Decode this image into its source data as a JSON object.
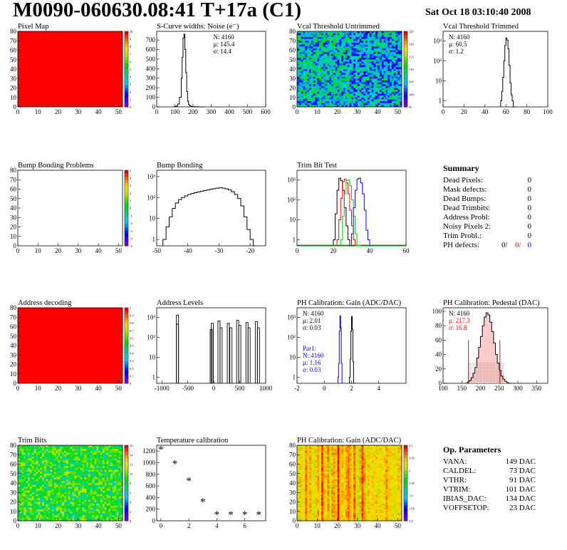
{
  "header": {
    "title": "M0090-060630.08:41 T+17a (C1)",
    "date": "Sat Oct 18 03:10:40 2008"
  },
  "palette": {
    "red": "#ff0000",
    "blue": "#0000ff",
    "green": "#00cc00"
  },
  "chart_data": [
    {
      "id": "pixel-map",
      "type": "heatmap",
      "title": "Pixel Map",
      "xlim": [
        0,
        52
      ],
      "ylim": [
        0,
        80
      ],
      "xticks": [
        0,
        10,
        20,
        30,
        40,
        50
      ],
      "yticks": [
        0,
        10,
        20,
        30,
        40,
        50,
        60,
        70,
        80
      ],
      "fill": "uniform-red",
      "zlim": [
        0,
        10
      ],
      "zticks": [
        "0",
        "1",
        "2",
        "3",
        "4",
        "5",
        "6",
        "7",
        "8",
        "9",
        "10"
      ]
    },
    {
      "id": "scurve",
      "type": "line",
      "title": "S-Curve widths: Noise (e⁻)",
      "log": false,
      "xlim": [
        0,
        600
      ],
      "ylim": [
        0,
        790
      ],
      "xticks": [
        0,
        100,
        200,
        300,
        400,
        500,
        600
      ],
      "yticks": [
        0,
        100,
        200,
        300,
        400,
        500,
        600,
        700
      ],
      "stats": [
        "N: 4160",
        "μ: 145.4",
        "σ: 14.4"
      ],
      "series": [
        {
          "x": [
            95,
            105,
            115,
            125,
            135,
            140,
            145,
            150,
            155,
            160,
            165,
            170,
            175,
            180,
            190,
            200,
            215,
            230,
            250
          ],
          "y": [
            2,
            8,
            30,
            100,
            300,
            520,
            720,
            760,
            600,
            360,
            160,
            60,
            25,
            10,
            4,
            2,
            1,
            0,
            0
          ]
        }
      ]
    },
    {
      "id": "vcal-untrimmed",
      "type": "heatmap",
      "title": "Vcal Threshold Untrimmed",
      "xlim": [
        0,
        52
      ],
      "ylim": [
        0,
        80
      ],
      "xticks": [
        0,
        10,
        20,
        30,
        40,
        50
      ],
      "yticks": [
        0,
        10,
        20,
        30,
        40,
        50,
        60,
        70,
        80
      ],
      "fill": "noise-mid-cyan",
      "zticks": [
        "95",
        "100",
        "105",
        "110",
        "115",
        "120",
        "125"
      ]
    },
    {
      "id": "vcal-trimmed",
      "type": "line",
      "title": "Vcal Threshold Trimmed",
      "log": true,
      "xlim": [
        0,
        100
      ],
      "ylim": [
        0.5,
        3000
      ],
      "xticks": [
        0,
        20,
        40,
        60,
        80,
        100
      ],
      "yticks": [
        1,
        10,
        100,
        1000
      ],
      "stats": [
        "N: 4160",
        "μ: 60.5",
        "σ:  1.2"
      ],
      "series": [
        {
          "x": [
            55,
            56,
            57,
            58,
            59,
            60,
            61,
            62,
            63,
            64,
            65,
            66,
            67
          ],
          "y": [
            1,
            3,
            15,
            100,
            600,
            1400,
            1100,
            400,
            60,
            8,
            2,
            1,
            0.5
          ]
        }
      ]
    },
    {
      "id": "bump-bonding-problems",
      "type": "heatmap",
      "title": "Bump Bonding Problems",
      "xlim": [
        0,
        52
      ],
      "ylim": [
        0,
        80
      ],
      "xticks": [
        0,
        10,
        20,
        30,
        40,
        50
      ],
      "yticks": [
        0,
        10,
        20,
        30,
        40,
        50,
        60,
        70,
        80
      ],
      "fill": "empty",
      "zticks": [
        "-5",
        "-4",
        "-3",
        "-2",
        "-1",
        "0",
        "1",
        "2",
        "3",
        "4",
        "5"
      ]
    },
    {
      "id": "bump-bonding",
      "type": "line",
      "title": "Bump Bonding",
      "log": true,
      "xlim": [
        -50,
        -15
      ],
      "ylim": [
        0.5,
        2000
      ],
      "xticks": [
        -50,
        -40,
        -30,
        -20
      ],
      "yticks": [
        1,
        10,
        100,
        1000
      ],
      "series": [
        {
          "x": [
            -48,
            -47,
            -46,
            -45,
            -44,
            -43,
            -42,
            -41,
            -40,
            -39,
            -38,
            -37,
            -36,
            -35,
            -34,
            -33,
            -32,
            -31,
            -30,
            -29,
            -28,
            -27,
            -26,
            -25,
            -24,
            -23,
            -22,
            -21,
            -20,
            -19
          ],
          "y": [
            1,
            4,
            12,
            30,
            55,
            80,
            100,
            120,
            140,
            155,
            170,
            185,
            200,
            215,
            230,
            250,
            265,
            280,
            290,
            280,
            260,
            230,
            190,
            140,
            90,
            40,
            12,
            3,
            1,
            0.5
          ]
        }
      ]
    },
    {
      "id": "trim-bit-test",
      "type": "line",
      "title": "Trim Bit Test",
      "log": true,
      "xlim": [
        0,
        60
      ],
      "ylim": [
        0.5,
        3000
      ],
      "xticks": [
        0,
        20,
        40,
        60
      ],
      "yticks": [
        1,
        10,
        100,
        1000
      ],
      "series": [
        {
          "color": "#000000",
          "x": [
            20,
            21,
            22,
            23,
            24,
            25,
            26,
            27,
            28,
            29,
            30,
            31
          ],
          "y": [
            1,
            20,
            300,
            1200,
            900,
            300,
            40,
            5,
            1,
            0.5,
            0.5,
            0.5
          ]
        },
        {
          "color": "#ff0000",
          "x": [
            22,
            23,
            24,
            25,
            26,
            27,
            28,
            29,
            30,
            31,
            32,
            33
          ],
          "y": [
            1,
            10,
            120,
            800,
            1100,
            700,
            200,
            30,
            5,
            1,
            0.5,
            0.5
          ]
        },
        {
          "color": "#00cc00",
          "x": [
            24,
            25,
            26,
            27,
            28,
            29,
            30,
            31,
            32,
            33,
            34
          ],
          "y": [
            1,
            15,
            200,
            900,
            1000,
            500,
            100,
            15,
            2,
            0.5,
            0.5
          ]
        },
        {
          "color": "#0000ff",
          "x": [
            30,
            31,
            32,
            33,
            34,
            35,
            36,
            37,
            38,
            39,
            40
          ],
          "y": [
            2,
            40,
            300,
            1100,
            1200,
            700,
            200,
            30,
            3,
            1,
            0.5
          ]
        }
      ]
    },
    {
      "id": "address-decoding",
      "type": "heatmap",
      "title": "Address decoding",
      "xlim": [
        0,
        52
      ],
      "ylim": [
        0,
        80
      ],
      "xticks": [
        0,
        10,
        20,
        30,
        40,
        50
      ],
      "yticks": [
        0,
        10,
        20,
        30,
        40,
        50,
        60,
        70,
        80
      ],
      "fill": "uniform-red",
      "zticks": [
        "0",
        "0.1",
        "0.2",
        "0.3",
        "0.4",
        "0.5",
        "0.6",
        "0.7",
        "0.8",
        "0.9",
        "1"
      ]
    },
    {
      "id": "address-levels",
      "type": "line",
      "title": "Address Levels",
      "log": true,
      "xlim": [
        -1100,
        1000
      ],
      "ylim": [
        0.5,
        3000
      ],
      "xticks": [
        -1000,
        -500,
        0,
        500,
        1000
      ],
      "yticks": [
        1,
        10,
        100,
        1000
      ],
      "series": [
        {
          "spikes": [
            [
              -700,
              1300
            ],
            [
              -700,
              450
            ],
            [
              -50,
              250
            ],
            [
              -30,
              500
            ],
            [
              100,
              650
            ],
            [
              140,
              300
            ],
            [
              280,
              500
            ],
            [
              330,
              300
            ],
            [
              460,
              700
            ],
            [
              500,
              400
            ],
            [
              640,
              550
            ],
            [
              680,
              300
            ],
            [
              820,
              600
            ],
            [
              860,
              300
            ]
          ]
        }
      ]
    },
    {
      "id": "ph-gain",
      "type": "line",
      "title": "PH Calibration: Gain (ADC/DAC)",
      "log": true,
      "xlim": [
        -2,
        6
      ],
      "ylim": [
        0.5,
        3000
      ],
      "xticks": [
        -2,
        0,
        2,
        4
      ],
      "yticks": [
        1,
        10,
        100,
        1000
      ],
      "stats": [
        "N: 4160",
        "μ: 2.01",
        "σ: 0.03"
      ],
      "stats2": [
        "Par1:",
        "N: 4160",
        "μ: 1.16",
        "σ: 0.03"
      ],
      "series": [
        {
          "color": "#0000ff",
          "x": [
            1.0,
            1.05,
            1.1,
            1.15,
            1.2,
            1.25,
            1.3
          ],
          "y": [
            1,
            5,
            200,
            1200,
            300,
            5,
            0.5
          ]
        },
        {
          "color": "#000000",
          "x": [
            1.85,
            1.9,
            1.95,
            2.0,
            2.05,
            2.1,
            2.15
          ],
          "y": [
            1,
            8,
            200,
            1100,
            250,
            6,
            0.5
          ]
        }
      ]
    },
    {
      "id": "ph-pedestal",
      "type": "line",
      "title": "PH Calibration: Pedestal (DAC)",
      "log": false,
      "xlim": [
        100,
        380
      ],
      "ylim": [
        0,
        105
      ],
      "xticks": [
        100,
        150,
        200,
        250,
        300,
        350
      ],
      "yticks": [
        0,
        20,
        40,
        60,
        80,
        100
      ],
      "stats": [
        "N: 4160",
        "μ: 217.3",
        "σ: 16.8"
      ],
      "fitlines": [
        168,
        252
      ],
      "series": [
        {
          "x": [
            160,
            165,
            170,
            175,
            180,
            185,
            190,
            195,
            200,
            205,
            210,
            215,
            220,
            225,
            230,
            235,
            240,
            245,
            250,
            255,
            260,
            265,
            270,
            275
          ],
          "y": [
            0,
            2,
            4,
            8,
            14,
            22,
            35,
            50,
            65,
            80,
            92,
            98,
            95,
            85,
            72,
            56,
            40,
            28,
            18,
            10,
            6,
            3,
            1,
            0
          ]
        }
      ]
    },
    {
      "id": "trim-bits",
      "type": "heatmap",
      "title": "Trim Bits",
      "xlim": [
        0,
        52
      ],
      "ylim": [
        0,
        80
      ],
      "xticks": [
        0,
        10,
        20,
        30,
        40,
        50
      ],
      "yticks": [
        0,
        10,
        20,
        30,
        40,
        50,
        60,
        70,
        80
      ],
      "fill": "noise-green",
      "zticks": [
        "0",
        "2",
        "4",
        "6",
        "8",
        "10",
        "12",
        "14",
        "16"
      ]
    },
    {
      "id": "temperature",
      "type": "scatter",
      "title": "Temperature calibration",
      "log": false,
      "xlim": [
        -0.3,
        7.5
      ],
      "ylim": [
        0,
        1300
      ],
      "xticks": [
        0,
        2,
        4,
        6
      ],
      "yticks": [
        0,
        200,
        400,
        600,
        800,
        1000,
        1200
      ],
      "series": [
        {
          "x": [
            0,
            1,
            2,
            3,
            4,
            5,
            6,
            7
          ],
          "y": [
            1230,
            990,
            690,
            330,
            110,
            110,
            110,
            110
          ]
        }
      ]
    },
    {
      "id": "ph-gain-map",
      "type": "heatmap",
      "title": "PH Calibration: Gain (ADC/DAC)",
      "xlim": [
        0,
        52
      ],
      "ylim": [
        0,
        80
      ],
      "xticks": [
        0,
        10,
        20,
        30,
        40,
        50
      ],
      "yticks": [
        0,
        10,
        20,
        30,
        40,
        50,
        60,
        70,
        80
      ],
      "fill": "columns-warm",
      "zticks": [
        "1.8",
        "1.85",
        "1.9",
        "1.95",
        "2",
        "2.05",
        "2.1"
      ]
    }
  ],
  "summary": {
    "title": "Summary",
    "rows": [
      {
        "label": "Dead Pixels:",
        "value": "0"
      },
      {
        "label": "Mask defects:",
        "value": "0"
      },
      {
        "label": "Dead Bumps:",
        "value": "0"
      },
      {
        "label": "Dead Trimbits:",
        "value": "0"
      },
      {
        "label": "Address Probl:",
        "value": "0"
      },
      {
        "label": "Noisy Pixels 2:",
        "value": "0"
      },
      {
        "label": "Trim Probl.:",
        "value": "0"
      }
    ],
    "ph_label": "PH defects:",
    "ph_values": [
      "0/",
      "0/",
      "0"
    ]
  },
  "params": {
    "title": "Op. Parameters",
    "rows": [
      {
        "label": "VANA:",
        "value": "149 DAC"
      },
      {
        "label": "CALDEL:",
        "value": "73 DAC"
      },
      {
        "label": "VTHR:",
        "value": "91 DAC"
      },
      {
        "label": "VTRIM:",
        "value": "101 DAC"
      },
      {
        "label": "IBIAS_DAC:",
        "value": "134 DAC"
      },
      {
        "label": "VOFFSETOP:",
        "value": "23 DAC"
      }
    ]
  }
}
